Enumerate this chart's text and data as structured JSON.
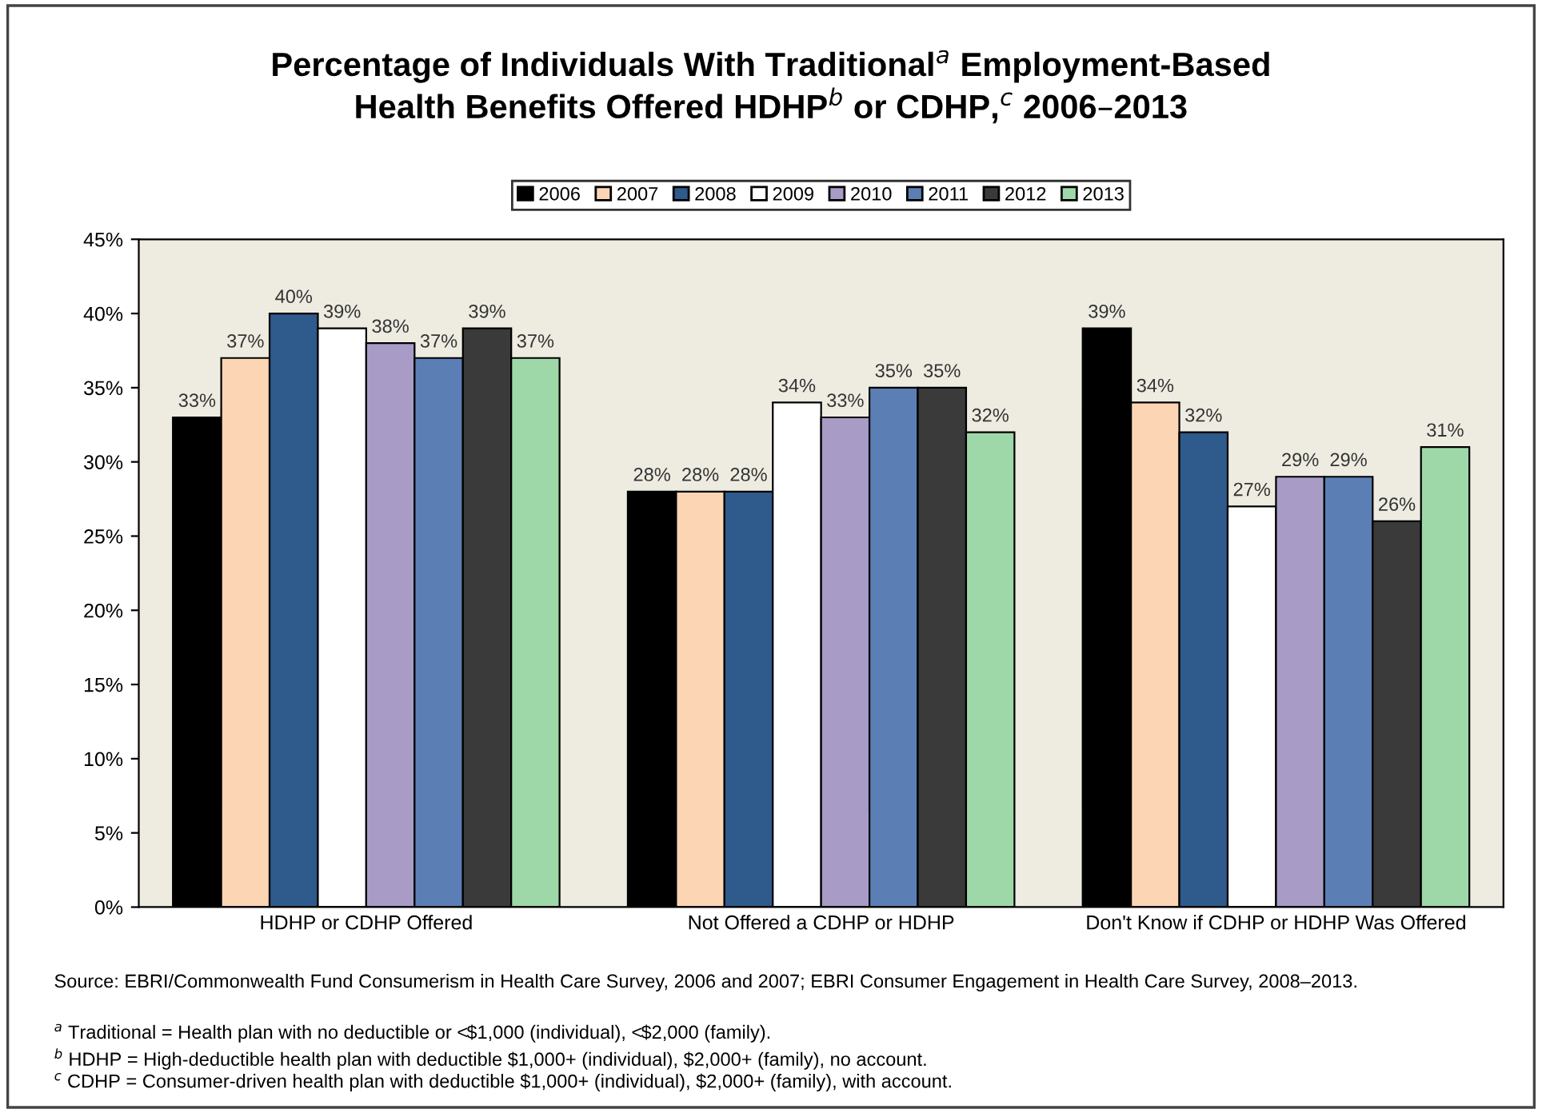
{
  "chart_data": {
    "type": "bar",
    "title": "Percentage of Individuals With Traditional$^{a}$ Employment-Based\nHealth Benefits Offered HDHP$^{b}$ or CDHP,$^{c}$ 2006–2013",
    "categories": [
      "HDHP or CDHP Offered",
      "Not Offered a CDHP or HDHP",
      "Don't Know if CDHP or HDHP Was Offered"
    ],
    "series": [
      {
        "name": "2006",
        "color": "#000000",
        "values": [
          33,
          28,
          39
        ],
        "value_labels": [
          "33%",
          "28%",
          "39%"
        ]
      },
      {
        "name": "2007",
        "color": "#fcd5b5",
        "values": [
          37,
          28,
          34
        ],
        "value_labels": [
          "37%",
          "28%",
          "34%"
        ]
      },
      {
        "name": "2008",
        "color": "#2e5a8c",
        "values": [
          40,
          28,
          32
        ],
        "value_labels": [
          "40%",
          "28%",
          "32%"
        ]
      },
      {
        "name": "2009",
        "color": "#ffffff",
        "values": [
          39,
          34,
          27
        ],
        "value_labels": [
          "39%",
          "34%",
          "27%"
        ]
      },
      {
        "name": "2010",
        "color": "#a89bc6",
        "values": [
          38,
          33,
          29
        ],
        "value_labels": [
          "38%",
          "33%",
          "29%"
        ]
      },
      {
        "name": "2011",
        "color": "#5b7fb5",
        "values": [
          37,
          35,
          29
        ],
        "value_labels": [
          "37%",
          "35%",
          "29%"
        ]
      },
      {
        "name": "2012",
        "color": "#3a3a3a",
        "values": [
          39,
          35,
          26
        ],
        "value_labels": [
          "39%",
          "35%",
          "26%"
        ]
      },
      {
        "name": "2013",
        "color": "#9fd8a8",
        "values": [
          37,
          32,
          31
        ],
        "value_labels": [
          "37%",
          "32%",
          "31%"
        ]
      }
    ],
    "ylim": [
      0,
      45
    ],
    "yticks": [
      {
        "value": 0,
        "label": "0%"
      },
      {
        "value": 5,
        "label": "5%"
      },
      {
        "value": 10,
        "label": "10%"
      },
      {
        "value": 15,
        "label": "15%"
      },
      {
        "value": 20,
        "label": "20%"
      },
      {
        "value": 25,
        "label": "25%"
      },
      {
        "value": 30,
        "label": "30%"
      },
      {
        "value": 35,
        "label": "35%"
      },
      {
        "value": 40,
        "label": "40%"
      },
      {
        "value": 45,
        "label": "45%"
      }
    ],
    "grid": false,
    "legend": "top",
    "annotations": [
      "Source: EBRI/Commonwealth Fund Consumerism in Health Care Survey, 2006 and 2007; EBRI Consumer Engagement in Health Care Survey, 2008–2013.",
      "$^{a}$ Traditional = Health plan with no deductible or <$1,000 (individual), <$2,000 (family).",
      "$^{b}$ HDHP = High-deductible health plan with deductible $1,000+ (individual), $2,000+ (family), no account.",
      "$^{c}$ CDHP = Consumer-driven health plan with deductible $1,000+ (individual), $2,000+ (family), with account."
    ]
  }
}
